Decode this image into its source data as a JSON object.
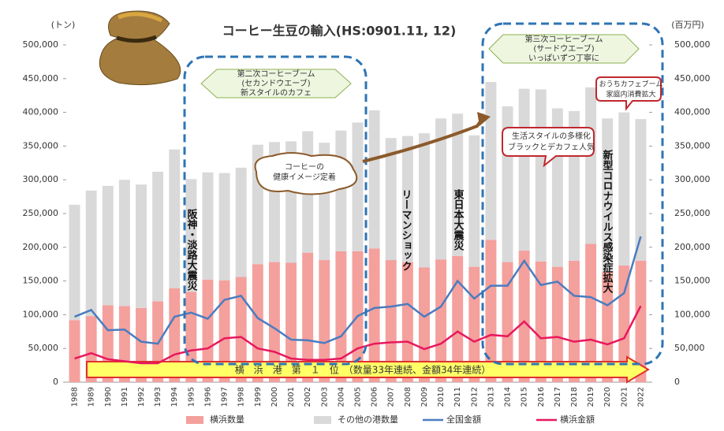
{
  "chart_data": {
    "type": "bar",
    "title": "コーヒー生豆の輸入(HS:0901.11, 12)",
    "y_label": "(トン)",
    "y2_label": "(百万円)",
    "categories": [
      "1988",
      "1989",
      "1990",
      "1991",
      "1992",
      "1993",
      "1994",
      "1995",
      "1996",
      "1997",
      "1998",
      "1999",
      "2000",
      "2001",
      "2002",
      "2003",
      "2004",
      "2005",
      "2006",
      "2007",
      "2008",
      "2009",
      "2010",
      "2011",
      "2012",
      "2013",
      "2014",
      "2015",
      "2016",
      "2017",
      "2018",
      "2019",
      "2020",
      "2021",
      "2022"
    ],
    "stacked": true,
    "series": [
      {
        "name": "横浜数量",
        "type": "bar",
        "color": "#f4a09c",
        "values": [
          92000,
          98000,
          114000,
          113000,
          110000,
          120000,
          139000,
          134000,
          152000,
          151000,
          156000,
          175000,
          178000,
          177000,
          192000,
          181000,
          194000,
          194000,
          198000,
          181000,
          178000,
          170000,
          182000,
          187000,
          171000,
          211000,
          178000,
          195000,
          179000,
          171000,
          180000,
          205000,
          163000,
          173000,
          180000
        ]
      },
      {
        "name": "その他の港数量",
        "type": "bar",
        "color": "#d9d9d9",
        "values": [
          171000,
          186000,
          177000,
          187000,
          183000,
          192000,
          206000,
          167000,
          159000,
          159000,
          162000,
          177000,
          178000,
          180000,
          180000,
          174000,
          179000,
          191000,
          205000,
          181000,
          187000,
          199000,
          209000,
          211000,
          195000,
          234000,
          231000,
          240000,
          255000,
          235000,
          222000,
          232000,
          228000,
          227000,
          210000
        ]
      },
      {
        "name": "全国金額",
        "type": "line",
        "axis": "y2",
        "color": "#4a7cc0",
        "values": [
          97000,
          107000,
          77000,
          78000,
          60000,
          57000,
          97000,
          103000,
          94000,
          122000,
          128000,
          95000,
          80000,
          63000,
          62000,
          58000,
          68000,
          98000,
          110000,
          112000,
          116000,
          97000,
          112000,
          150000,
          124000,
          143000,
          143000,
          180000,
          144000,
          149000,
          128000,
          126000,
          114000,
          132000,
          216000
        ]
      },
      {
        "name": "横浜金額",
        "type": "line",
        "axis": "y2",
        "color": "#e8185e",
        "values": [
          35000,
          43000,
          34000,
          31000,
          28000,
          28000,
          41000,
          47000,
          50000,
          65000,
          67000,
          50000,
          45000,
          35000,
          33000,
          33000,
          35000,
          50000,
          57000,
          59000,
          60000,
          49000,
          57000,
          75000,
          60000,
          70000,
          68000,
          90000,
          65000,
          67000,
          60000,
          63000,
          56000,
          65000,
          113000
        ]
      }
    ],
    "ylim": [
      0,
      500000
    ],
    "yticks": [
      0,
      {
        "value": 50000,
        "label": "50,000"
      },
      {
        "value": 100000,
        "label": "100,000"
      },
      {
        "value": 150000,
        "label": "150,000"
      },
      {
        "value": 200000,
        "label": "200,000"
      },
      {
        "value": 250000,
        "label": "250,000"
      },
      {
        "value": 300000,
        "label": "300,000"
      },
      {
        "value": 350000,
        "label": "350,000"
      },
      {
        "value": 400000,
        "label": "400,000"
      },
      {
        "value": 450000,
        "label": "450,000"
      },
      {
        "value": 500000,
        "label": "500,000"
      }
    ],
    "y2lim": [
      0,
      500000
    ],
    "y2ticks": [
      0,
      {
        "value": 50000,
        "label": "50,000"
      },
      {
        "value": 100000,
        "label": "100,000"
      },
      {
        "value": 150000,
        "label": "150,000"
      },
      {
        "value": 200000,
        "label": "200,000"
      },
      {
        "value": 250000,
        "label": "250,000"
      },
      {
        "value": 300000,
        "label": "300,000"
      },
      {
        "value": 350000,
        "label": "350,000"
      },
      {
        "value": 400000,
        "label": "400,000"
      },
      {
        "value": 450000,
        "label": "450,000"
      },
      {
        "value": 500000,
        "label": "500,000"
      }
    ],
    "annotations": [
      {
        "lines": [
          "第二次コーヒーブーム",
          "(セカンドウエーブ)",
          "新スタイルのカフェ"
        ]
      },
      {
        "lines": [
          "第三次コーヒーブーム",
          "(サードウエーブ)",
          "いっぱいずつ丁寧に"
        ]
      },
      {
        "lines": [
          "コーヒーの",
          "健康イメージ定着"
        ]
      },
      {
        "lines": [
          "生活スタイルの多様化",
          "ブラックとデカフェ人気"
        ]
      },
      {
        "lines": [
          "おうちカフェブーム",
          "家庭内消費拡大"
        ]
      },
      {
        "lines": [
          "阪神・淡路大震災"
        ]
      },
      {
        "lines": [
          "リーマンショック"
        ]
      },
      {
        "lines": [
          "東日本大震災"
        ]
      },
      {
        "lines": [
          "新型コロナウイルス感染症拡大"
        ]
      },
      {
        "lines": [
          "横　浜　港　第　１　位　（数量33年連続、金額34年連続）"
        ]
      }
    ]
  }
}
